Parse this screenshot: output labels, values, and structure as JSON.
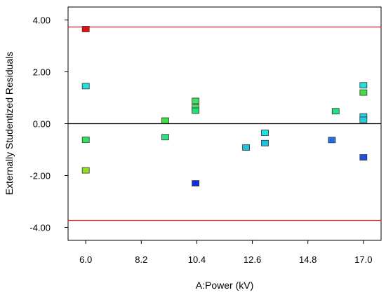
{
  "chart_data": {
    "type": "scatter",
    "xlabel": "A:Power (kV)",
    "ylabel": "Externally Studentized Residuals",
    "xlim": [
      5.3,
      17.7
    ],
    "ylim": [
      -4.5,
      4.5
    ],
    "x_ticks": [
      "6.0",
      "8.2",
      "10.4",
      "12.6",
      "14.8",
      "17.0"
    ],
    "x_tick_values": [
      6.0,
      8.2,
      10.4,
      12.6,
      14.8,
      17.0
    ],
    "y_ticks": [
      "4.00",
      "2.00",
      "0.00",
      "-2.00",
      "-4.00"
    ],
    "y_tick_values": [
      4,
      2,
      0,
      -2,
      -4
    ],
    "grid": false,
    "reference_lines": [
      {
        "y": 3.73,
        "color": "#e02020"
      },
      {
        "y": -3.73,
        "color": "#e02020"
      },
      {
        "y": 0,
        "color": "#000000"
      }
    ],
    "points": [
      {
        "x": 6.0,
        "y": 3.65,
        "color": "#e01010"
      },
      {
        "x": 6.0,
        "y": 1.45,
        "color": "#20e0e0"
      },
      {
        "x": 6.0,
        "y": -0.62,
        "color": "#30e060"
      },
      {
        "x": 6.0,
        "y": -1.8,
        "color": "#90e020"
      },
      {
        "x": 9.15,
        "y": 0.12,
        "color": "#40e040"
      },
      {
        "x": 9.15,
        "y": -0.52,
        "color": "#30e080"
      },
      {
        "x": 10.35,
        "y": 0.88,
        "color": "#40e060"
      },
      {
        "x": 10.35,
        "y": 0.63,
        "color": "#40e060"
      },
      {
        "x": 10.35,
        "y": 0.5,
        "color": "#20e070"
      },
      {
        "x": 10.35,
        "y": -2.3,
        "color": "#1030e0"
      },
      {
        "x": 12.35,
        "y": -0.92,
        "color": "#20c0e0"
      },
      {
        "x": 13.1,
        "y": -0.35,
        "color": "#20e0e0"
      },
      {
        "x": 13.1,
        "y": -0.75,
        "color": "#20c0e0"
      },
      {
        "x": 15.9,
        "y": 0.48,
        "color": "#20e080"
      },
      {
        "x": 15.75,
        "y": -0.63,
        "color": "#2070e0"
      },
      {
        "x": 17.0,
        "y": 1.48,
        "color": "#20e0e0"
      },
      {
        "x": 17.0,
        "y": 1.2,
        "color": "#40e040"
      },
      {
        "x": 17.0,
        "y": 0.28,
        "color": "#20d0e0"
      },
      {
        "x": 17.0,
        "y": 0.15,
        "color": "#20d0e0"
      },
      {
        "x": 17.0,
        "y": -1.3,
        "color": "#2050e0"
      }
    ]
  }
}
